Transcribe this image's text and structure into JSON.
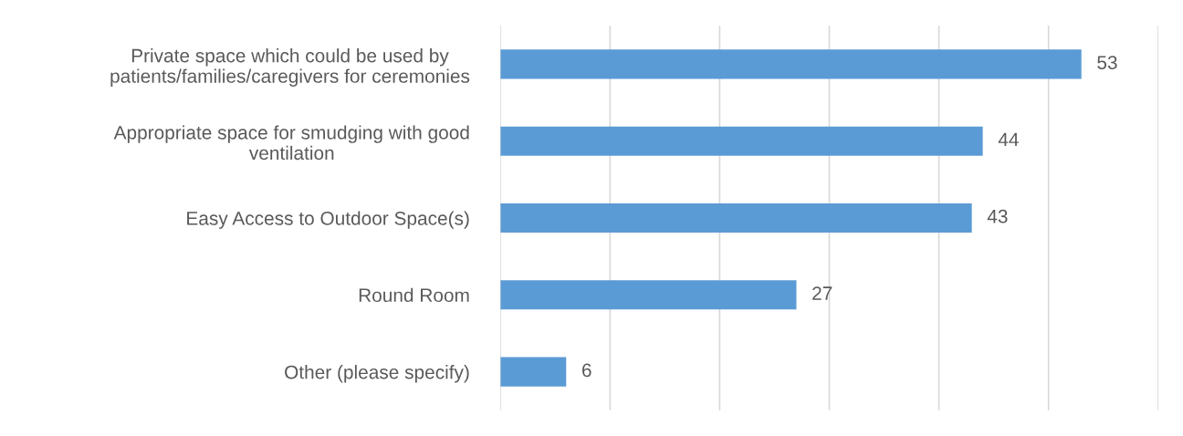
{
  "chart_data": {
    "type": "bar",
    "orientation": "horizontal",
    "categories": [
      "Private space which could be used by\npatients/families/caregivers for ceremonies",
      "Appropriate space for smudging with good\nventilation",
      "Easy Access to Outdoor Space(s)",
      "Round Room",
      "Other (please specify)"
    ],
    "values": [
      53,
      44,
      43,
      27,
      6
    ],
    "color": "#5b9bd5",
    "xlim": [
      0,
      60
    ],
    "xticks": [
      {
        "value": 0,
        "label": null
      },
      {
        "value": 10,
        "label": null
      },
      {
        "value": 20,
        "label": null
      },
      {
        "value": 30,
        "label": null
      },
      {
        "value": 40,
        "label": null
      },
      {
        "value": 50,
        "label": null
      },
      {
        "value": 60,
        "label": null
      }
    ],
    "tick_labels": "y",
    "grid": "x",
    "data_labels": true,
    "legend": false
  }
}
